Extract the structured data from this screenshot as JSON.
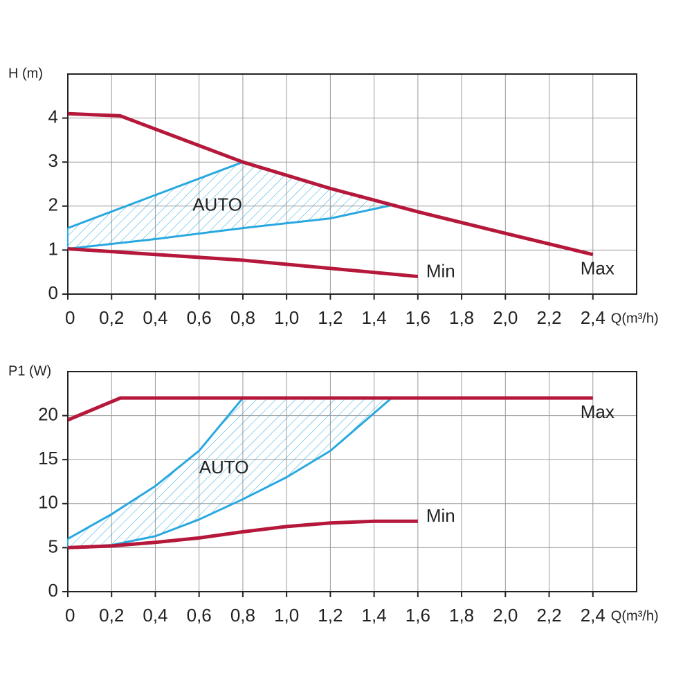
{
  "chart_data": [
    {
      "type": "line",
      "ylabel": "H (m)",
      "xlabel": "Q(m³/h)",
      "annotation": "AUTO",
      "xlim": [
        0,
        2.6
      ],
      "ylim": [
        0,
        5
      ],
      "xticks": [
        0,
        {
          "value": 0.2,
          "label": "0,2"
        },
        {
          "value": 0.4,
          "label": "0,4"
        },
        {
          "value": 0.6,
          "label": "0,6"
        },
        {
          "value": 0.8,
          "label": "0,8"
        },
        {
          "value": 1.0,
          "label": "1,0"
        },
        {
          "value": 1.2,
          "label": "1,2"
        },
        {
          "value": 1.4,
          "label": "1,4"
        },
        {
          "value": 1.6,
          "label": "1,6"
        },
        {
          "value": 1.8,
          "label": "1,8"
        },
        {
          "value": 2.0,
          "label": "2,0"
        },
        {
          "value": 2.2,
          "label": "2,2"
        },
        {
          "value": 2.4,
          "label": "2,4"
        }
      ],
      "yticks": [
        0,
        1,
        2,
        3,
        4
      ],
      "grid": true,
      "series": [
        {
          "color": "#29a8e0",
          "hatch": true,
          "x": [
            0,
            0.4,
            0.8,
            1.2,
            1.48
          ],
          "values": [
            1.5,
            2.25,
            3.0,
            2.4,
            2.02
          ]
        },
        {
          "color": "#29a8e0",
          "hatch": true,
          "x": [
            0,
            0.4,
            0.8,
            1.2,
            1.48
          ],
          "values": [
            1.03,
            1.25,
            1.5,
            1.72,
            2.02
          ]
        },
        {
          "name": "Max",
          "color": "#b5183a",
          "x": [
            0,
            0.24,
            0.8,
            1.2,
            1.6,
            2.0,
            2.4
          ],
          "values": [
            4.1,
            4.05,
            3.0,
            2.4,
            1.87,
            1.38,
            0.9
          ]
        },
        {
          "name": "Min",
          "color": "#b5183a",
          "x": [
            0,
            0.8,
            1.6
          ],
          "values": [
            1.03,
            0.77,
            0.4
          ]
        }
      ]
    },
    {
      "type": "line",
      "ylabel": "P1 (W)",
      "xlabel": "Q(m³/h)",
      "annotation": "AUTO",
      "xlim": [
        0,
        2.6
      ],
      "ylim": [
        0,
        25
      ],
      "xticks": [
        0,
        {
          "value": 0.2,
          "label": "0,2"
        },
        {
          "value": 0.4,
          "label": "0,4"
        },
        {
          "value": 0.6,
          "label": "0,6"
        },
        {
          "value": 0.8,
          "label": "0,8"
        },
        {
          "value": 1.0,
          "label": "1,0"
        },
        {
          "value": 1.2,
          "label": "1,2"
        },
        {
          "value": 1.4,
          "label": "1,4"
        },
        {
          "value": 1.6,
          "label": "1,6"
        },
        {
          "value": 1.8,
          "label": "1,8"
        },
        {
          "value": 2.0,
          "label": "2,0"
        },
        {
          "value": 2.2,
          "label": "2,2"
        },
        {
          "value": 2.4,
          "label": "2,4"
        }
      ],
      "yticks": [
        0,
        5,
        10,
        15,
        20
      ],
      "grid": true,
      "series": [
        {
          "color": "#29a8e0",
          "hatch": true,
          "x": [
            0,
            0.2,
            0.4,
            0.6,
            0.8,
            1.48
          ],
          "values": [
            6,
            8.8,
            12,
            16,
            22,
            22
          ]
        },
        {
          "color": "#29a8e0",
          "hatch": true,
          "x": [
            0,
            0.2,
            0.4,
            0.6,
            0.8,
            1.0,
            1.2,
            1.48
          ],
          "values": [
            5,
            5.3,
            6.3,
            8.2,
            10.5,
            13,
            16,
            22
          ]
        },
        {
          "name": "Max",
          "color": "#b5183a",
          "x": [
            0,
            0.24,
            2.4
          ],
          "values": [
            19.5,
            22,
            22
          ]
        },
        {
          "name": "Min",
          "color": "#b5183a",
          "x": [
            0,
            0.2,
            0.4,
            0.6,
            0.8,
            1.0,
            1.2,
            1.4,
            1.6
          ],
          "values": [
            5,
            5.2,
            5.6,
            6.1,
            6.8,
            7.4,
            7.8,
            8,
            8
          ]
        }
      ]
    }
  ]
}
